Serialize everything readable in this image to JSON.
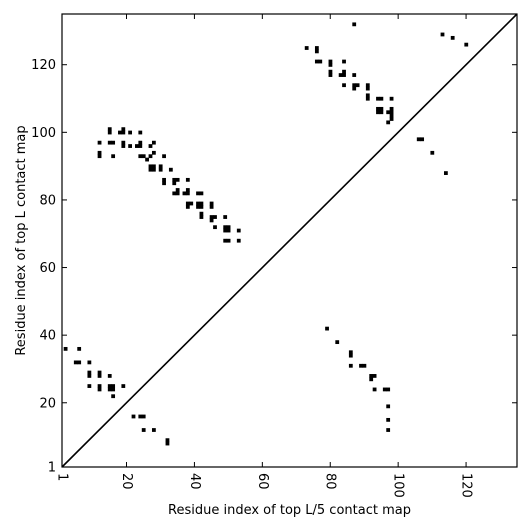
{
  "chart_data": {
    "type": "scatter",
    "title": "",
    "xlabel": "Residue index of top L/5 contact map",
    "ylabel": "Residue index of top L contact map",
    "xlim": [
      1,
      135
    ],
    "ylim": [
      1,
      135
    ],
    "grid": false,
    "diagonal_line": true,
    "x_ticks": [
      {
        "value": 1,
        "label": "1"
      },
      {
        "value": 20,
        "label": "20"
      },
      {
        "value": 40,
        "label": "40"
      },
      {
        "value": 60,
        "label": "60"
      },
      {
        "value": 80,
        "label": "80"
      },
      {
        "value": 100,
        "label": "100"
      },
      {
        "value": 120,
        "label": "120"
      }
    ],
    "y_ticks": [
      {
        "value": 1,
        "label": "1"
      },
      {
        "value": 20,
        "label": "20"
      },
      {
        "value": 40,
        "label": "40"
      },
      {
        "value": 60,
        "label": "60"
      },
      {
        "value": 80,
        "label": "80"
      },
      {
        "value": 100,
        "label": "100"
      },
      {
        "value": 120,
        "label": "120"
      }
    ],
    "upper_triangle_points": [
      [
        12,
        93
      ],
      [
        12,
        94
      ],
      [
        12,
        97
      ],
      [
        15,
        100
      ],
      [
        15,
        101
      ],
      [
        15,
        97
      ],
      [
        16,
        97
      ],
      [
        16,
        93
      ],
      [
        18,
        100
      ],
      [
        19,
        101
      ],
      [
        19,
        100
      ],
      [
        19,
        96
      ],
      [
        19,
        97
      ],
      [
        21,
        100
      ],
      [
        21,
        96
      ],
      [
        23,
        96
      ],
      [
        24,
        96
      ],
      [
        24,
        97
      ],
      [
        24,
        100
      ],
      [
        24,
        93
      ],
      [
        25,
        93
      ],
      [
        26,
        92
      ],
      [
        27,
        93
      ],
      [
        27,
        96
      ],
      [
        28,
        94
      ],
      [
        28,
        97
      ],
      [
        27,
        90
      ],
      [
        27,
        89
      ],
      [
        28,
        90
      ],
      [
        28,
        89
      ],
      [
        30,
        89
      ],
      [
        30,
        90
      ],
      [
        31,
        93
      ],
      [
        31,
        86
      ],
      [
        31,
        85
      ],
      [
        33,
        89
      ],
      [
        34,
        86
      ],
      [
        34,
        85
      ],
      [
        35,
        86
      ],
      [
        34,
        82
      ],
      [
        35,
        82
      ],
      [
        35,
        83
      ],
      [
        37,
        82
      ],
      [
        38,
        82
      ],
      [
        38,
        83
      ],
      [
        38,
        86
      ],
      [
        38,
        79
      ],
      [
        38,
        78
      ],
      [
        39,
        79
      ],
      [
        41,
        82
      ],
      [
        42,
        82
      ],
      [
        41,
        79
      ],
      [
        42,
        79
      ],
      [
        41,
        78
      ],
      [
        42,
        78
      ],
      [
        42,
        76
      ],
      [
        42,
        75
      ],
      [
        45,
        79
      ],
      [
        45,
        78
      ],
      [
        45,
        75
      ],
      [
        46,
        75
      ],
      [
        45,
        74
      ],
      [
        46,
        72
      ],
      [
        49,
        75
      ],
      [
        49,
        72
      ],
      [
        50,
        72
      ],
      [
        49,
        71
      ],
      [
        50,
        71
      ],
      [
        49,
        68
      ],
      [
        50,
        68
      ],
      [
        53,
        71
      ],
      [
        53,
        68
      ],
      [
        73,
        125
      ],
      [
        76,
        125
      ],
      [
        76,
        124
      ],
      [
        76,
        121
      ],
      [
        77,
        121
      ],
      [
        80,
        121
      ],
      [
        80,
        120
      ],
      [
        80,
        118
      ],
      [
        80,
        117
      ],
      [
        83,
        117
      ],
      [
        84,
        118
      ],
      [
        84,
        117
      ],
      [
        84,
        121
      ],
      [
        84,
        114
      ],
      [
        87,
        117
      ],
      [
        87,
        114
      ],
      [
        87,
        113
      ],
      [
        88,
        114
      ],
      [
        91,
        114
      ],
      [
        91,
        113
      ],
      [
        91,
        111
      ],
      [
        91,
        110
      ],
      [
        94,
        110
      ],
      [
        95,
        110
      ],
      [
        94,
        107
      ],
      [
        95,
        107
      ],
      [
        94,
        106
      ],
      [
        95,
        106
      ],
      [
        97,
        103
      ],
      [
        97,
        106
      ],
      [
        98,
        106
      ],
      [
        98,
        107
      ],
      [
        98,
        105
      ],
      [
        98,
        104
      ],
      [
        98,
        110
      ],
      [
        106,
        98
      ],
      [
        107,
        98
      ],
      [
        110,
        94
      ],
      [
        114,
        88
      ],
      [
        113,
        129
      ],
      [
        116,
        128
      ],
      [
        120,
        126
      ],
      [
        87,
        132
      ]
    ],
    "lower_triangle_points": [
      [
        2,
        36
      ],
      [
        5,
        32
      ],
      [
        6,
        32
      ],
      [
        6,
        36
      ],
      [
        9,
        32
      ],
      [
        9,
        29
      ],
      [
        9,
        28
      ],
      [
        9,
        25
      ],
      [
        12,
        29
      ],
      [
        12,
        28
      ],
      [
        12,
        25
      ],
      [
        12,
        24
      ],
      [
        15,
        28
      ],
      [
        15,
        25
      ],
      [
        16,
        25
      ],
      [
        15,
        24
      ],
      [
        16,
        24
      ],
      [
        16,
        22
      ],
      [
        19,
        25
      ],
      [
        22,
        16
      ],
      [
        24,
        16
      ],
      [
        25,
        16
      ],
      [
        25,
        12
      ],
      [
        28,
        12
      ],
      [
        32,
        9
      ],
      [
        32,
        8
      ],
      [
        79,
        42
      ],
      [
        82,
        38
      ],
      [
        86,
        35
      ],
      [
        86,
        34
      ],
      [
        86,
        31
      ],
      [
        89,
        31
      ],
      [
        90,
        31
      ],
      [
        92,
        28
      ],
      [
        93,
        28
      ],
      [
        92,
        27
      ],
      [
        93,
        24
      ],
      [
        96,
        24
      ],
      [
        97,
        24
      ],
      [
        97,
        19
      ],
      [
        97,
        15
      ],
      [
        97,
        12
      ]
    ]
  }
}
